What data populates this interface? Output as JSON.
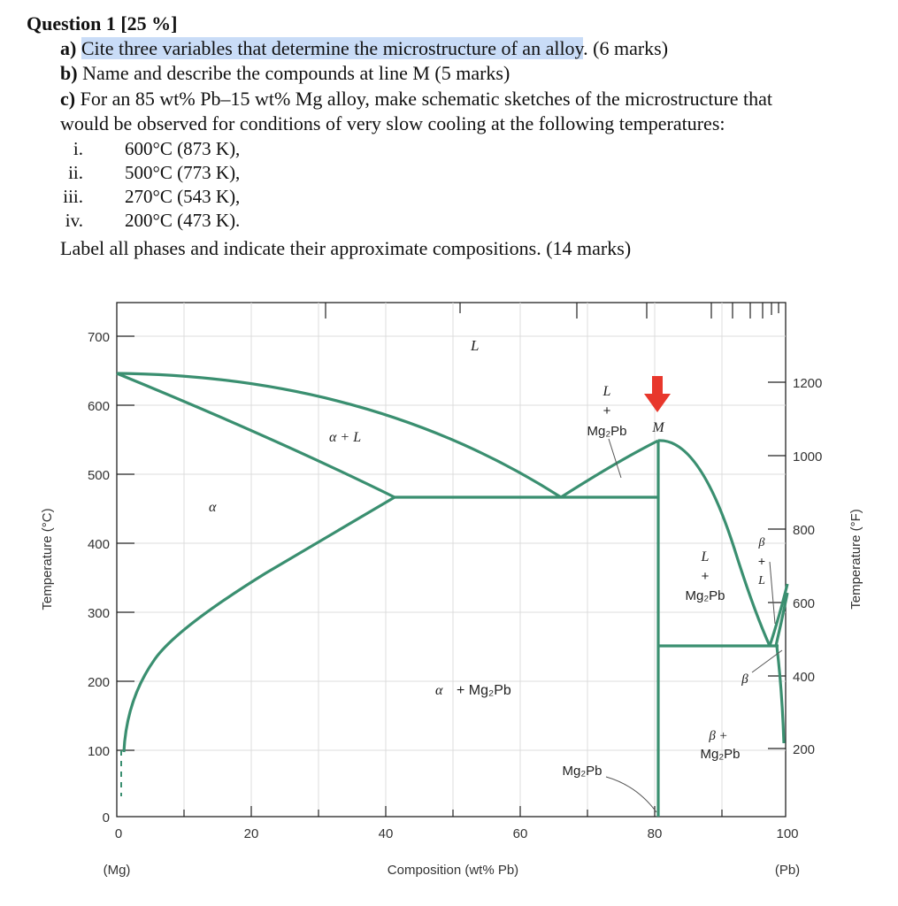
{
  "question": {
    "title": "Question 1 [25 %]",
    "a_label": "a)",
    "a_text_highlight": "Cite three variables that determine the microstructure of an alloy",
    "a_text_rest": ". (6 marks)",
    "b_label": "b)",
    "b_text": "Name and describe the compounds at line M (5 marks)",
    "c_label": "c)",
    "c_text_1": "For an 85 wt% Pb–15 wt% Mg alloy, make schematic sketches of the microstructure that",
    "c_text_2": "would be observed for conditions of very slow cooling at the following temperatures:",
    "temps": [
      {
        "num": "i.",
        "text": "600°C (873 K),"
      },
      {
        "num": "ii.",
        "text": "500°C (773 K),"
      },
      {
        "num": "iii.",
        "text": "270°C (543 K),"
      },
      {
        "num": "iv.",
        "text": "200°C (473 K)."
      }
    ],
    "closing": "Label all phases and indicate their approximate compositions. (14 marks)"
  },
  "diagram": {
    "y_left_label": "Temperature (°C)",
    "y_right_label": "Temperature (°F)",
    "x_label": "Composition (wt% Pb)",
    "x_left_end": "(Mg)",
    "x_right_end": "(Pb)",
    "y_left_ticks": [
      "700",
      "600",
      "500",
      "400",
      "300",
      "200",
      "100",
      "0"
    ],
    "y_right_ticks": [
      "1200",
      "1000",
      "800",
      "600",
      "400",
      "200"
    ],
    "x_ticks": [
      "0",
      "20",
      "40",
      "60",
      "80",
      "100"
    ],
    "regions": {
      "L": "L",
      "alpha_L": "α + L",
      "alpha": "α",
      "L_plus": "L",
      "plus1": "+",
      "mg2pb_1": "Mg₂Pb",
      "M": "M",
      "alpha_mg2pb_a": "α",
      "alpha_mg2pb_b": "+ Mg₂Pb",
      "mg2pb_line": "Mg₂Pb",
      "L2": "L",
      "plus2": "+",
      "mg2pb_2": "Mg₂Pb",
      "beta_L_b": "β",
      "beta_L_plus": "+",
      "beta_L_L": "L",
      "beta": "β",
      "beta_mg2pb_b": "β +",
      "beta_mg2pb_m": "Mg₂Pb"
    },
    "colors": {
      "phase_line": "#3a8f70",
      "arrow": "#e8372c",
      "highlight": "#c9dcf7"
    }
  }
}
